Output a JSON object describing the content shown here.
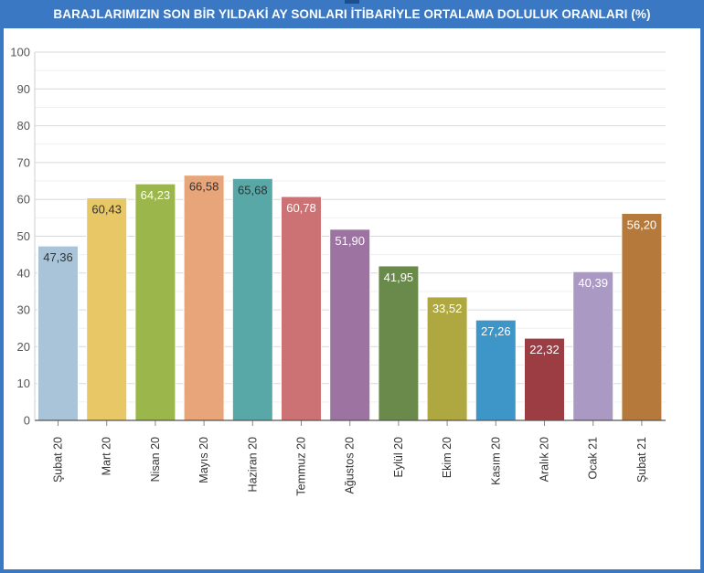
{
  "title": "BARAJLARIMIZIN SON BİR YILDAKİ AY SONLARI İTİBARİYLE ORTALAMA DOLULUK ORANLARI (%)",
  "chart_data": {
    "type": "bar",
    "title": "BARAJLARIMIZIN SON BİR YILDAKİ AY SONLARI İTİBARİYLE ORTALAMA DOLULUK ORANLARI (%)",
    "xlabel": "",
    "ylabel": "",
    "ylim": [
      0,
      100
    ],
    "yticks": [
      "0",
      "10",
      "20",
      "30",
      "40",
      "50",
      "60",
      "70",
      "80",
      "90",
      "100"
    ],
    "grid": true,
    "categories": [
      "Şubat 20",
      "Mart 20",
      "Nisan 20",
      "Mayıs 20",
      "Haziran 20",
      "Temmuz 20",
      "Ağustos 20",
      "Eylül 20",
      "Ekim 20",
      "Kasım 20",
      "Aralık 20",
      "Ocak 21",
      "Şubat 21"
    ],
    "values": [
      47.36,
      60.43,
      64.23,
      66.58,
      65.68,
      60.78,
      51.9,
      41.95,
      33.52,
      27.26,
      22.32,
      40.39,
      56.2
    ],
    "value_labels": [
      "47,36",
      "60,43",
      "64,23",
      "66,58",
      "65,68",
      "60,78",
      "51,90",
      "41,95",
      "33,52",
      "27,26",
      "22,32",
      "40,39",
      "56,20"
    ],
    "colors": [
      "#a9c4d9",
      "#e8c767",
      "#9bb64a",
      "#e8a57a",
      "#57a8a6",
      "#cc7274",
      "#9d73a2",
      "#6a8a4b",
      "#afa73f",
      "#3e95c8",
      "#9b3d43",
      "#aa9ac3",
      "#b57a3b"
    ],
    "label_colors": [
      "#333333",
      "#333333",
      "#ffffff",
      "#333333",
      "#333333",
      "#ffffff",
      "#ffffff",
      "#ffffff",
      "#ffffff",
      "#ffffff",
      "#ffffff",
      "#ffffff",
      "#ffffff"
    ]
  }
}
